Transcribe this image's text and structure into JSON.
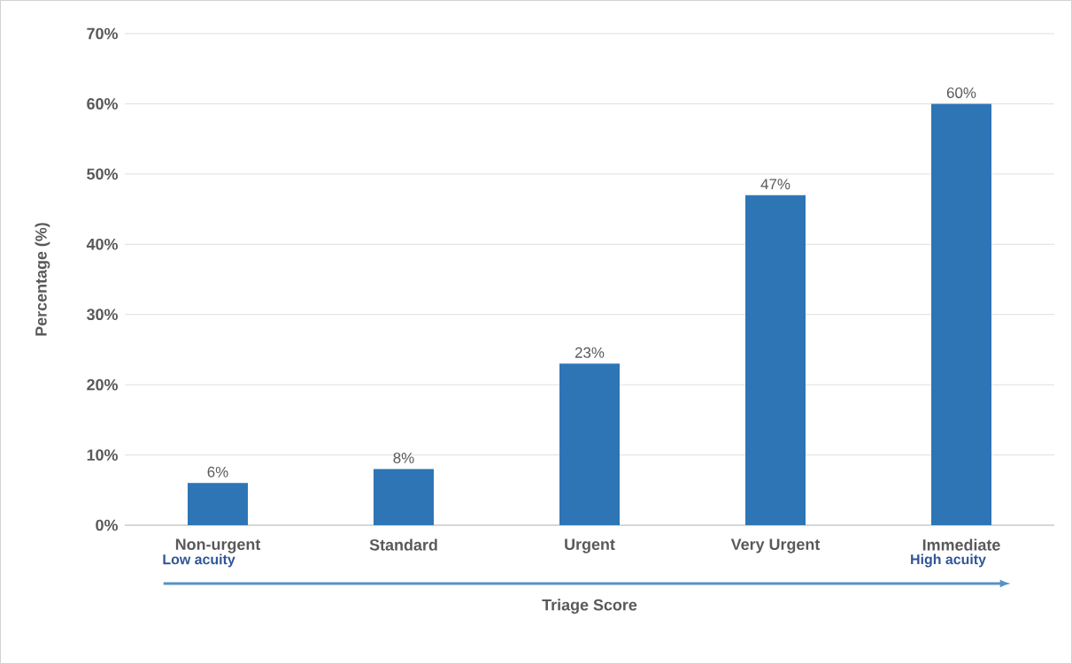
{
  "chart_data": {
    "type": "bar",
    "categories": [
      "Non-urgent",
      "Standard",
      "Urgent",
      "Very Urgent",
      "Immediate"
    ],
    "values": [
      6,
      8,
      23,
      47,
      60
    ],
    "value_labels": [
      "6%",
      "8%",
      "23%",
      "47%",
      "60%"
    ],
    "color": "#2e75b6",
    "xlabel": "Triage Score",
    "ylabel": "Percentage (%)",
    "ylim": [
      0,
      70
    ],
    "yticks": [
      {
        "value": 0,
        "label": "0%"
      },
      {
        "value": 10,
        "label": "10%"
      },
      {
        "value": 20,
        "label": "20%"
      },
      {
        "value": 30,
        "label": "30%"
      },
      {
        "value": 40,
        "label": "40%"
      },
      {
        "value": 50,
        "label": "50%"
      },
      {
        "value": 60,
        "label": "60%"
      },
      {
        "value": 70,
        "label": "70%"
      }
    ],
    "grid": "y",
    "annotations": [
      "Low acuity",
      "High acuity"
    ]
  }
}
